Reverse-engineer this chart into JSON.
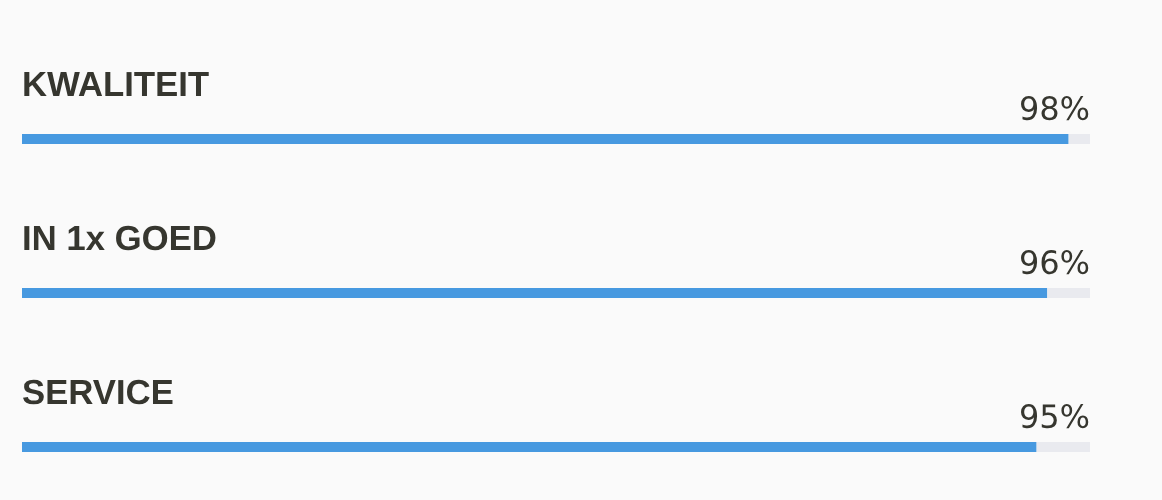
{
  "chart_data": {
    "type": "bar",
    "orientation": "horizontal",
    "stacked": true,
    "categories": [
      "KWALITEIT",
      "IN 1x GOED",
      "SERVICE"
    ],
    "series": [
      {
        "color": "#4799e0",
        "values": [
          98,
          96,
          95
        ],
        "value_labels": [
          "98%",
          "96%",
          "95%"
        ]
      },
      {
        "color": "#e9eaef",
        "values": [
          2,
          4,
          5
        ]
      }
    ],
    "xlim": [
      0,
      100
    ],
    "tick_labels": "y"
  }
}
